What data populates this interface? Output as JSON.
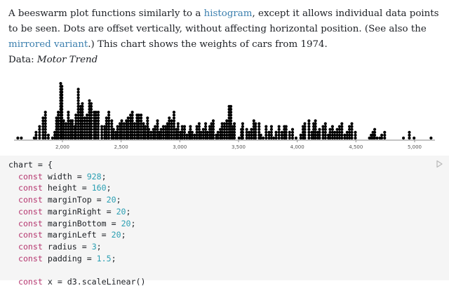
{
  "intro": {
    "text1": "A beeswarm plot functions similarly to a ",
    "link_histogram": "histogram",
    "text2": ", except it allows individual data points to be seen. Dots are offset vertically, without affecting horizontal position. (See also the ",
    "link_mirrored": "mirrored variant",
    "text3": ".) This chart shows the weights of cars from 1974.",
    "data_label": "Data: ",
    "data_source": "Motor Trend"
  },
  "chart_data": {
    "type": "scatter",
    "subtype": "beeswarm",
    "xlim": [
      1500,
      5200
    ],
    "xticks": [
      2000,
      2500,
      3000,
      3500,
      4000,
      4500,
      5000
    ],
    "xtick_labels": [
      "2,000",
      "2,500",
      "3,000",
      "3,500",
      "4,000",
      "4,500",
      "5,000"
    ],
    "dot_color": "#000000",
    "grid": false,
    "stacks": [
      [
        1620,
        1
      ],
      [
        1650,
        1
      ],
      [
        1760,
        1
      ],
      [
        1775,
        3
      ],
      [
        1805,
        5
      ],
      [
        1835,
        8
      ],
      [
        1855,
        10
      ],
      [
        1880,
        2
      ],
      [
        1915,
        1
      ],
      [
        1935,
        3
      ],
      [
        1950,
        8
      ],
      [
        1965,
        10
      ],
      [
        1985,
        20
      ],
      [
        1995,
        19
      ],
      [
        2010,
        7
      ],
      [
        2030,
        6
      ],
      [
        2050,
        10
      ],
      [
        2070,
        7
      ],
      [
        2085,
        7
      ],
      [
        2105,
        5
      ],
      [
        2115,
        9
      ],
      [
        2135,
        18
      ],
      [
        2155,
        12
      ],
      [
        2170,
        13
      ],
      [
        2190,
        8
      ],
      [
        2210,
        9
      ],
      [
        2230,
        14
      ],
      [
        2245,
        13
      ],
      [
        2270,
        10
      ],
      [
        2285,
        10
      ],
      [
        2305,
        10
      ],
      [
        2335,
        5
      ],
      [
        2360,
        5
      ],
      [
        2375,
        8
      ],
      [
        2395,
        10
      ],
      [
        2420,
        7
      ],
      [
        2435,
        4
      ],
      [
        2455,
        3
      ],
      [
        2470,
        5
      ],
      [
        2490,
        6
      ],
      [
        2505,
        7
      ],
      [
        2525,
        6
      ],
      [
        2545,
        7
      ],
      [
        2560,
        8
      ],
      [
        2580,
        9
      ],
      [
        2595,
        10
      ],
      [
        2615,
        6
      ],
      [
        2635,
        9
      ],
      [
        2650,
        9
      ],
      [
        2670,
        9
      ],
      [
        2690,
        6
      ],
      [
        2705,
        5
      ],
      [
        2725,
        8
      ],
      [
        2735,
        4
      ],
      [
        2755,
        3
      ],
      [
        2775,
        4
      ],
      [
        2790,
        5
      ],
      [
        2810,
        7
      ],
      [
        2825,
        3
      ],
      [
        2840,
        4
      ],
      [
        2860,
        5
      ],
      [
        2880,
        5
      ],
      [
        2895,
        6
      ],
      [
        2910,
        8
      ],
      [
        2930,
        7
      ],
      [
        2950,
        10
      ],
      [
        2970,
        4
      ],
      [
        2985,
        6
      ],
      [
        3005,
        3
      ],
      [
        3020,
        5
      ],
      [
        3040,
        5
      ],
      [
        3060,
        2
      ],
      [
        3080,
        3
      ],
      [
        3090,
        5
      ],
      [
        3105,
        3
      ],
      [
        3125,
        2
      ],
      [
        3145,
        5
      ],
      [
        3165,
        6
      ],
      [
        3180,
        3
      ],
      [
        3200,
        4
      ],
      [
        3220,
        6
      ],
      [
        3235,
        3
      ],
      [
        3255,
        5
      ],
      [
        3270,
        6
      ],
      [
        3285,
        7
      ],
      [
        3310,
        2
      ],
      [
        3325,
        3
      ],
      [
        3345,
        4
      ],
      [
        3360,
        6
      ],
      [
        3380,
        6
      ],
      [
        3400,
        7
      ],
      [
        3420,
        12
      ],
      [
        3435,
        12
      ],
      [
        3450,
        5
      ],
      [
        3465,
        6
      ],
      [
        3505,
        1
      ],
      [
        3525,
        4
      ],
      [
        3535,
        6
      ],
      [
        3570,
        4
      ],
      [
        3590,
        3
      ],
      [
        3610,
        4
      ],
      [
        3630,
        7
      ],
      [
        3645,
        6
      ],
      [
        3675,
        6
      ],
      [
        3690,
        2
      ],
      [
        3710,
        1
      ],
      [
        3735,
        5
      ],
      [
        3760,
        3
      ],
      [
        3780,
        5
      ],
      [
        3800,
        1
      ],
      [
        3820,
        3
      ],
      [
        3845,
        5
      ],
      [
        3870,
        3
      ],
      [
        3890,
        5
      ],
      [
        3905,
        5
      ],
      [
        3935,
        3
      ],
      [
        3960,
        4
      ],
      [
        3990,
        1
      ],
      [
        4030,
        2
      ],
      [
        4050,
        5
      ],
      [
        4065,
        6
      ],
      [
        4100,
        7
      ],
      [
        4125,
        3
      ],
      [
        4140,
        6
      ],
      [
        4155,
        7
      ],
      [
        4175,
        3
      ],
      [
        4190,
        4
      ],
      [
        4220,
        5
      ],
      [
        4240,
        6
      ],
      [
        4265,
        2
      ],
      [
        4280,
        4
      ],
      [
        4300,
        5
      ],
      [
        4320,
        3
      ],
      [
        4340,
        4
      ],
      [
        4360,
        5
      ],
      [
        4380,
        6
      ],
      [
        4405,
        2
      ],
      [
        4425,
        3
      ],
      [
        4445,
        5
      ],
      [
        4465,
        6
      ],
      [
        4495,
        3
      ],
      [
        4615,
        1
      ],
      [
        4630,
        2
      ],
      [
        4645,
        3
      ],
      [
        4660,
        4
      ],
      [
        4680,
        1
      ],
      [
        4705,
        1
      ],
      [
        4720,
        2
      ],
      [
        4745,
        3
      ],
      [
        4905,
        1
      ],
      [
        4955,
        3
      ],
      [
        4995,
        1
      ],
      [
        5140,
        1
      ]
    ]
  },
  "code": {
    "lines": [
      [
        {
          "t": "chart = {"
        }
      ],
      [
        {
          "t": "  "
        },
        {
          "t": "const",
          "c": "kw"
        },
        {
          "t": " width = "
        },
        {
          "t": "928",
          "c": "num"
        },
        {
          "t": ";"
        }
      ],
      [
        {
          "t": "  "
        },
        {
          "t": "const",
          "c": "kw"
        },
        {
          "t": " height = "
        },
        {
          "t": "160",
          "c": "num"
        },
        {
          "t": ";"
        }
      ],
      [
        {
          "t": "  "
        },
        {
          "t": "const",
          "c": "kw"
        },
        {
          "t": " marginTop = "
        },
        {
          "t": "20",
          "c": "num"
        },
        {
          "t": ";"
        }
      ],
      [
        {
          "t": "  "
        },
        {
          "t": "const",
          "c": "kw"
        },
        {
          "t": " marginRight = "
        },
        {
          "t": "20",
          "c": "num"
        },
        {
          "t": ";"
        }
      ],
      [
        {
          "t": "  "
        },
        {
          "t": "const",
          "c": "kw"
        },
        {
          "t": " marginBottom = "
        },
        {
          "t": "20",
          "c": "num"
        },
        {
          "t": ";"
        }
      ],
      [
        {
          "t": "  "
        },
        {
          "t": "const",
          "c": "kw"
        },
        {
          "t": " marginLeft = "
        },
        {
          "t": "20",
          "c": "num"
        },
        {
          "t": ";"
        }
      ],
      [
        {
          "t": "  "
        },
        {
          "t": "const",
          "c": "kw"
        },
        {
          "t": " radius = "
        },
        {
          "t": "3",
          "c": "num"
        },
        {
          "t": ";"
        }
      ],
      [
        {
          "t": "  "
        },
        {
          "t": "const",
          "c": "kw"
        },
        {
          "t": " padding = "
        },
        {
          "t": "1.5",
          "c": "num"
        },
        {
          "t": ";"
        }
      ],
      [
        {
          "t": ""
        }
      ],
      [
        {
          "t": "  "
        },
        {
          "t": "const",
          "c": "kw"
        },
        {
          "t": " x = d3.scaleLinear()"
        }
      ]
    ],
    "run_icon": "play-icon"
  }
}
